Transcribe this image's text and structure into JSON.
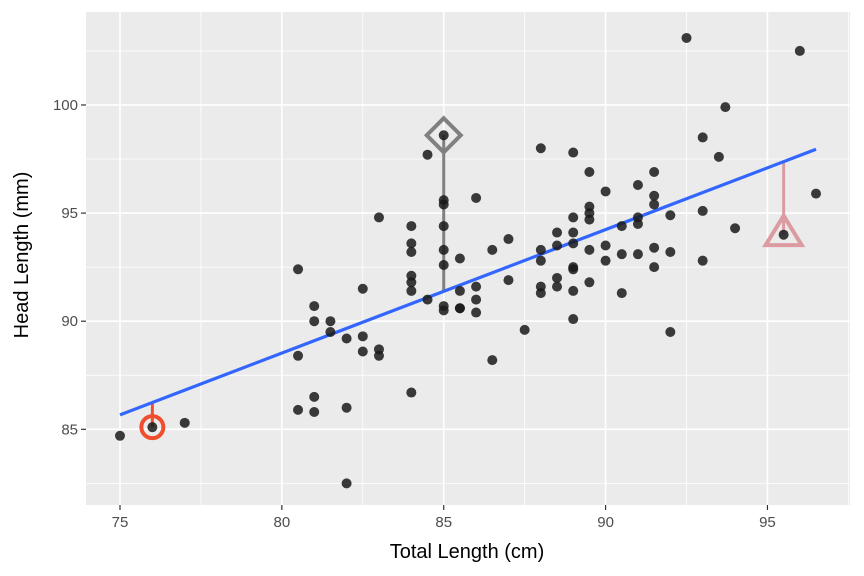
{
  "chart_data": {
    "type": "scatter",
    "title": "",
    "xlabel": "Total Length (cm)",
    "ylabel": "Head Length (mm)",
    "xlim": [
      73.95,
      97.55
    ],
    "ylim": [
      81.5,
      104.3
    ],
    "x_ticks": [
      75,
      80,
      85,
      90,
      95
    ],
    "x_tick_labels": [
      "75",
      "80",
      "85",
      "90",
      "95"
    ],
    "y_ticks": [
      85,
      90,
      95,
      100
    ],
    "y_tick_labels": [
      "85",
      "90",
      "95",
      "100"
    ],
    "grid": true,
    "legend": "none",
    "colors": {
      "panel": "#ebebeb",
      "grid": "#ffffff",
      "points": "#1a1a1a",
      "fit_line": "#3366ff",
      "highlight_circle": "#f04e2e",
      "highlight_diamond": "#808080",
      "highlight_triangle": "#dc9aa1"
    },
    "points": [
      {
        "x": 75.0,
        "y": 84.7
      },
      {
        "x": 76.0,
        "y": 85.1
      },
      {
        "x": 77.0,
        "y": 85.3
      },
      {
        "x": 80.5,
        "y": 92.4
      },
      {
        "x": 80.5,
        "y": 88.4
      },
      {
        "x": 80.5,
        "y": 85.9
      },
      {
        "x": 81.0,
        "y": 90.7
      },
      {
        "x": 81.0,
        "y": 90.0
      },
      {
        "x": 81.0,
        "y": 86.5
      },
      {
        "x": 81.0,
        "y": 85.8
      },
      {
        "x": 81.5,
        "y": 90.0
      },
      {
        "x": 81.5,
        "y": 89.5
      },
      {
        "x": 82.0,
        "y": 89.2
      },
      {
        "x": 82.0,
        "y": 86.0
      },
      {
        "x": 82.0,
        "y": 82.5
      },
      {
        "x": 82.5,
        "y": 91.5
      },
      {
        "x": 82.5,
        "y": 89.3
      },
      {
        "x": 82.5,
        "y": 88.6
      },
      {
        "x": 83.0,
        "y": 94.8
      },
      {
        "x": 83.0,
        "y": 88.7
      },
      {
        "x": 83.0,
        "y": 88.4
      },
      {
        "x": 84.0,
        "y": 94.4
      },
      {
        "x": 84.0,
        "y": 93.6
      },
      {
        "x": 84.0,
        "y": 93.2
      },
      {
        "x": 84.0,
        "y": 92.1
      },
      {
        "x": 84.0,
        "y": 91.8
      },
      {
        "x": 84.0,
        "y": 91.4
      },
      {
        "x": 84.0,
        "y": 86.7
      },
      {
        "x": 84.5,
        "y": 97.7
      },
      {
        "x": 84.5,
        "y": 91.0
      },
      {
        "x": 85.0,
        "y": 98.6
      },
      {
        "x": 85.0,
        "y": 95.6
      },
      {
        "x": 85.0,
        "y": 95.4
      },
      {
        "x": 85.0,
        "y": 94.4
      },
      {
        "x": 85.0,
        "y": 93.3
      },
      {
        "x": 85.0,
        "y": 92.6
      },
      {
        "x": 85.0,
        "y": 90.7
      },
      {
        "x": 85.0,
        "y": 90.5
      },
      {
        "x": 85.5,
        "y": 92.9
      },
      {
        "x": 85.5,
        "y": 91.4
      },
      {
        "x": 85.5,
        "y": 90.6
      },
      {
        "x": 85.5,
        "y": 90.6
      },
      {
        "x": 86.0,
        "y": 95.7
      },
      {
        "x": 86.0,
        "y": 91.6
      },
      {
        "x": 86.0,
        "y": 91.0
      },
      {
        "x": 86.0,
        "y": 90.4
      },
      {
        "x": 86.5,
        "y": 93.3
      },
      {
        "x": 86.5,
        "y": 88.2
      },
      {
        "x": 87.0,
        "y": 93.8
      },
      {
        "x": 87.0,
        "y": 91.9
      },
      {
        "x": 87.5,
        "y": 89.6
      },
      {
        "x": 88.0,
        "y": 98.0
      },
      {
        "x": 88.0,
        "y": 93.3
      },
      {
        "x": 88.0,
        "y": 92.8
      },
      {
        "x": 88.0,
        "y": 91.6
      },
      {
        "x": 88.0,
        "y": 91.3
      },
      {
        "x": 88.5,
        "y": 94.1
      },
      {
        "x": 88.5,
        "y": 93.5
      },
      {
        "x": 88.5,
        "y": 92.0
      },
      {
        "x": 88.5,
        "y": 91.6
      },
      {
        "x": 89.0,
        "y": 97.8
      },
      {
        "x": 89.0,
        "y": 94.8
      },
      {
        "x": 89.0,
        "y": 94.1
      },
      {
        "x": 89.0,
        "y": 93.6
      },
      {
        "x": 89.0,
        "y": 92.5
      },
      {
        "x": 89.0,
        "y": 92.4
      },
      {
        "x": 89.0,
        "y": 91.4
      },
      {
        "x": 89.0,
        "y": 90.1
      },
      {
        "x": 89.5,
        "y": 96.9
      },
      {
        "x": 89.5,
        "y": 95.3
      },
      {
        "x": 89.5,
        "y": 95.0
      },
      {
        "x": 89.5,
        "y": 94.7
      },
      {
        "x": 89.5,
        "y": 93.3
      },
      {
        "x": 89.5,
        "y": 91.8
      },
      {
        "x": 90.0,
        "y": 96.0
      },
      {
        "x": 90.0,
        "y": 93.5
      },
      {
        "x": 90.0,
        "y": 92.8
      },
      {
        "x": 90.5,
        "y": 94.4
      },
      {
        "x": 90.5,
        "y": 93.1
      },
      {
        "x": 90.5,
        "y": 91.3
      },
      {
        "x": 91.0,
        "y": 96.3
      },
      {
        "x": 91.0,
        "y": 94.8
      },
      {
        "x": 91.0,
        "y": 94.5
      },
      {
        "x": 91.0,
        "y": 93.1
      },
      {
        "x": 91.5,
        "y": 96.9
      },
      {
        "x": 91.5,
        "y": 95.8
      },
      {
        "x": 91.5,
        "y": 95.4
      },
      {
        "x": 91.5,
        "y": 93.4
      },
      {
        "x": 91.5,
        "y": 92.5
      },
      {
        "x": 92.0,
        "y": 94.9
      },
      {
        "x": 92.0,
        "y": 93.2
      },
      {
        "x": 92.0,
        "y": 89.5
      },
      {
        "x": 92.5,
        "y": 103.1
      },
      {
        "x": 93.0,
        "y": 98.5
      },
      {
        "x": 93.0,
        "y": 95.1
      },
      {
        "x": 93.0,
        "y": 92.8
      },
      {
        "x": 93.5,
        "y": 97.6
      },
      {
        "x": 93.7,
        "y": 99.9
      },
      {
        "x": 94.0,
        "y": 94.3
      },
      {
        "x": 95.5,
        "y": 94.0
      },
      {
        "x": 96.0,
        "y": 102.5
      },
      {
        "x": 96.5,
        "y": 95.9
      }
    ],
    "fit_line": {
      "x": [
        75.0,
        96.5
      ],
      "y": [
        85.67,
        97.95
      ]
    },
    "highlights": [
      {
        "shape": "circle",
        "x": 76.0,
        "y": 85.1,
        "fit_y": 86.24,
        "color": "#f04e2e"
      },
      {
        "shape": "diamond",
        "x": 85.0,
        "y": 98.6,
        "fit_y": 91.38,
        "color": "#808080"
      },
      {
        "shape": "triangle",
        "x": 95.5,
        "y": 94.0,
        "fit_y": 97.38,
        "color": "#dc9aa1"
      }
    ]
  }
}
